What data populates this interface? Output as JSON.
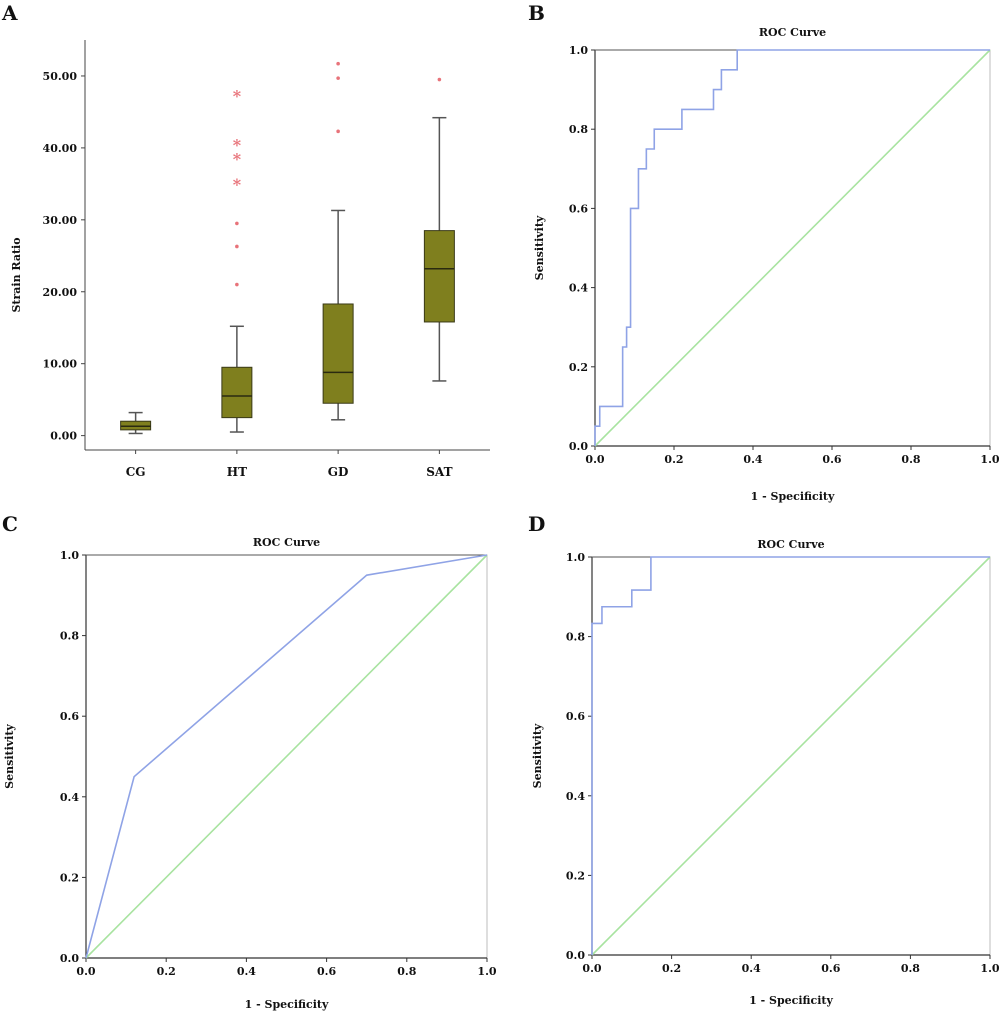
{
  "chart_data": [
    {
      "panel": "A",
      "type": "box",
      "title": "",
      "xlabel": "",
      "ylabel": "Strain Ratio",
      "categories": [
        "CG",
        "HT",
        "GD",
        "SAT"
      ],
      "yticks": [
        "0.00",
        "10.00",
        "20.00",
        "30.00",
        "40.00",
        "50.00"
      ],
      "ylim": [
        -2,
        55
      ],
      "boxes": [
        {
          "category": "CG",
          "min": 0.3,
          "q1": 0.8,
          "median": 1.3,
          "q3": 2.0,
          "max": 3.2,
          "outliers": [],
          "extremes": []
        },
        {
          "category": "HT",
          "min": 0.5,
          "q1": 2.5,
          "median": 5.5,
          "q3": 9.5,
          "max": 15.2,
          "outliers": [
            21.0,
            26.3,
            29.5
          ],
          "extremes": [
            35.0,
            38.5,
            40.5,
            47.3
          ]
        },
        {
          "category": "GD",
          "min": 2.2,
          "q1": 4.5,
          "median": 8.8,
          "q3": 18.3,
          "max": 31.3,
          "outliers": [
            42.3,
            49.7,
            51.7
          ],
          "extremes": []
        },
        {
          "category": "SAT",
          "min": 7.6,
          "q1": 15.8,
          "median": 23.2,
          "q3": 28.5,
          "max": 44.2,
          "outliers": [
            49.5
          ],
          "extremes": []
        }
      ],
      "colors": {
        "box": "#7f7f1e",
        "outlier": "#e8737a"
      }
    },
    {
      "panel": "B",
      "type": "line",
      "title": "ROC Curve",
      "xlabel": "1 - Specificity",
      "ylabel": "Sensitivity",
      "xticks": [
        "0.0",
        "0.2",
        "0.4",
        "0.6",
        "0.8",
        "1.0"
      ],
      "yticks": [
        "0.0",
        "0.2",
        "0.4",
        "0.6",
        "0.8",
        "1.0"
      ],
      "xlim": [
        0,
        1
      ],
      "ylim": [
        0,
        1
      ],
      "series": [
        {
          "x": [
            0,
            0,
            0.012,
            0.012,
            0.035,
            0.035,
            0.07,
            0.07,
            0.08,
            0.08,
            0.09,
            0.09,
            0.11,
            0.11,
            0.13,
            0.13,
            0.15,
            0.15,
            0.22,
            0.22,
            0.3,
            0.3,
            0.32,
            0.32,
            0.36,
            0.36,
            1
          ],
          "y": [
            0,
            0.05,
            0.05,
            0.1,
            0.1,
            0.1,
            0.1,
            0.25,
            0.25,
            0.3,
            0.3,
            0.6,
            0.6,
            0.7,
            0.7,
            0.75,
            0.75,
            0.8,
            0.8,
            0.85,
            0.85,
            0.9,
            0.9,
            0.95,
            0.95,
            1,
            1
          ]
        },
        {
          "x": [
            0,
            1
          ],
          "y": [
            0,
            1
          ]
        }
      ],
      "colors": {
        "roc": "#8fa3e6",
        "reference": "#a8e3a0"
      }
    },
    {
      "panel": "C",
      "type": "line",
      "title": "ROC Curve",
      "xlabel": "1 - Specificity",
      "ylabel": "Sensitivity",
      "xticks": [
        "0.0",
        "0.2",
        "0.4",
        "0.6",
        "0.8",
        "1.0"
      ],
      "yticks": [
        "0.0",
        "0.2",
        "0.4",
        "0.6",
        "0.8",
        "1.0"
      ],
      "xlim": [
        0,
        1
      ],
      "ylim": [
        0,
        1
      ],
      "series": [
        {
          "x": [
            0,
            0.12,
            0.7,
            1
          ],
          "y": [
            0,
            0.45,
            0.95,
            1
          ]
        },
        {
          "x": [
            0,
            1
          ],
          "y": [
            0,
            1
          ]
        }
      ],
      "colors": {
        "roc": "#8fa3e6",
        "reference": "#a8e3a0"
      }
    },
    {
      "panel": "D",
      "type": "line",
      "title": "ROC Curve",
      "xlabel": "1 - Specificity",
      "ylabel": "Sensitivity",
      "xticks": [
        "0.0",
        "0.2",
        "0.4",
        "0.6",
        "0.8",
        "1.0"
      ],
      "yticks": [
        "0.0",
        "0.2",
        "0.4",
        "0.6",
        "0.8",
        "1.0"
      ],
      "xlim": [
        0,
        1
      ],
      "ylim": [
        0,
        1
      ],
      "series": [
        {
          "x": [
            0,
            0,
            0.025,
            0.025,
            0.1,
            0.1,
            0.148,
            0.148,
            1
          ],
          "y": [
            0,
            0.833,
            0.833,
            0.875,
            0.875,
            0.917,
            0.917,
            1,
            1
          ]
        },
        {
          "x": [
            0,
            1
          ],
          "y": [
            0,
            1
          ]
        }
      ],
      "colors": {
        "roc": "#8fa3e6",
        "reference": "#a8e3a0"
      }
    }
  ]
}
